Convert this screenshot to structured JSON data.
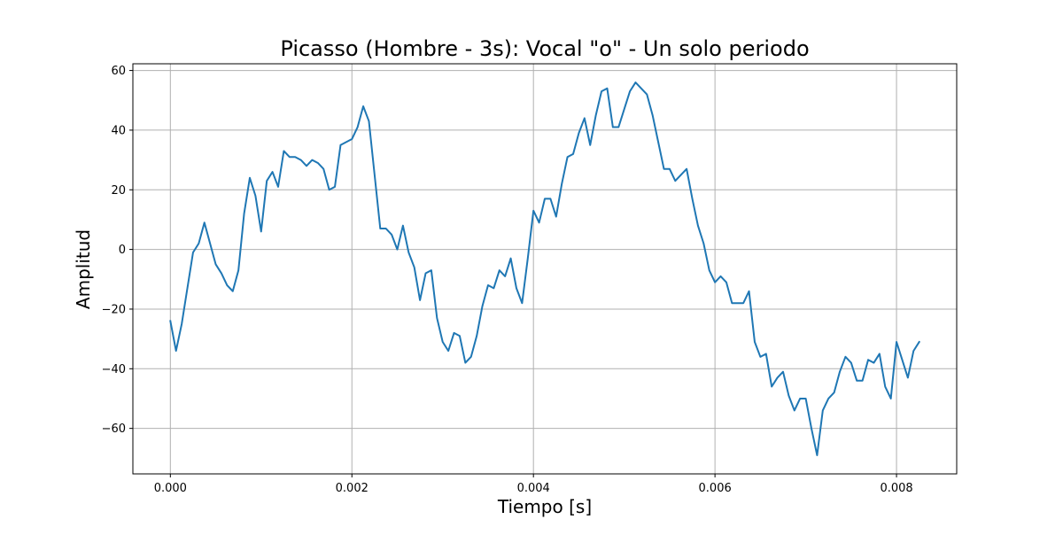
{
  "chart_data": {
    "type": "line",
    "title": "Picasso (Hombre - 3s): Vocal \"o\" - Un solo periodo",
    "xlabel": "Tiempo [s]",
    "ylabel": "Amplitud",
    "xlim": [
      -0.000413,
      0.008663
    ],
    "ylim": [
      -75.25,
      62.25
    ],
    "xticks": [
      0.0,
      0.002,
      0.004,
      0.006,
      0.008
    ],
    "xtick_labels": [
      "0.000",
      "0.002",
      "0.004",
      "0.006",
      "0.008"
    ],
    "yticks": [
      -60,
      -40,
      -20,
      0,
      20,
      40,
      60
    ],
    "ytick_labels": [
      "−60",
      "−40",
      "−20",
      "0",
      "20",
      "40",
      "60"
    ],
    "grid": true,
    "series": [
      {
        "color": "#1f77b4",
        "x_start": 0.0,
        "x_step": 6.25e-05,
        "values": [
          -24,
          -34,
          -25,
          -13,
          -1,
          2,
          9,
          2,
          -5,
          -8,
          -12,
          -14,
          -7,
          12,
          24,
          18,
          6,
          23,
          26,
          21,
          33,
          31,
          31,
          30,
          28,
          30,
          29,
          27,
          20,
          21,
          35,
          36,
          37,
          41,
          48,
          43,
          25,
          7,
          7,
          5,
          0,
          8,
          -1,
          -6,
          -17,
          -8,
          -7,
          -23,
          -31,
          -34,
          -28,
          -29,
          -38,
          -36,
          -29,
          -19,
          -12,
          -13,
          -7,
          -9,
          -3,
          -13,
          -18,
          -3,
          13,
          9,
          17,
          17,
          11,
          22,
          31,
          32,
          39,
          44,
          35,
          45,
          53,
          54,
          41,
          41,
          47,
          53,
          56,
          54,
          52,
          45,
          36,
          27,
          27,
          23,
          25,
          27,
          17,
          8,
          2,
          -7,
          -11,
          -9,
          -11,
          -18,
          -18,
          -18,
          -14,
          -31,
          -36,
          -35,
          -46,
          -43,
          -41,
          -49,
          -54,
          -50,
          -50,
          -60,
          -69,
          -54,
          -50,
          -48,
          -41,
          -36,
          -38,
          -44,
          -44,
          -37,
          -38,
          -35,
          -46,
          -50,
          -31,
          -37,
          -43,
          -34,
          -31
        ]
      }
    ]
  }
}
